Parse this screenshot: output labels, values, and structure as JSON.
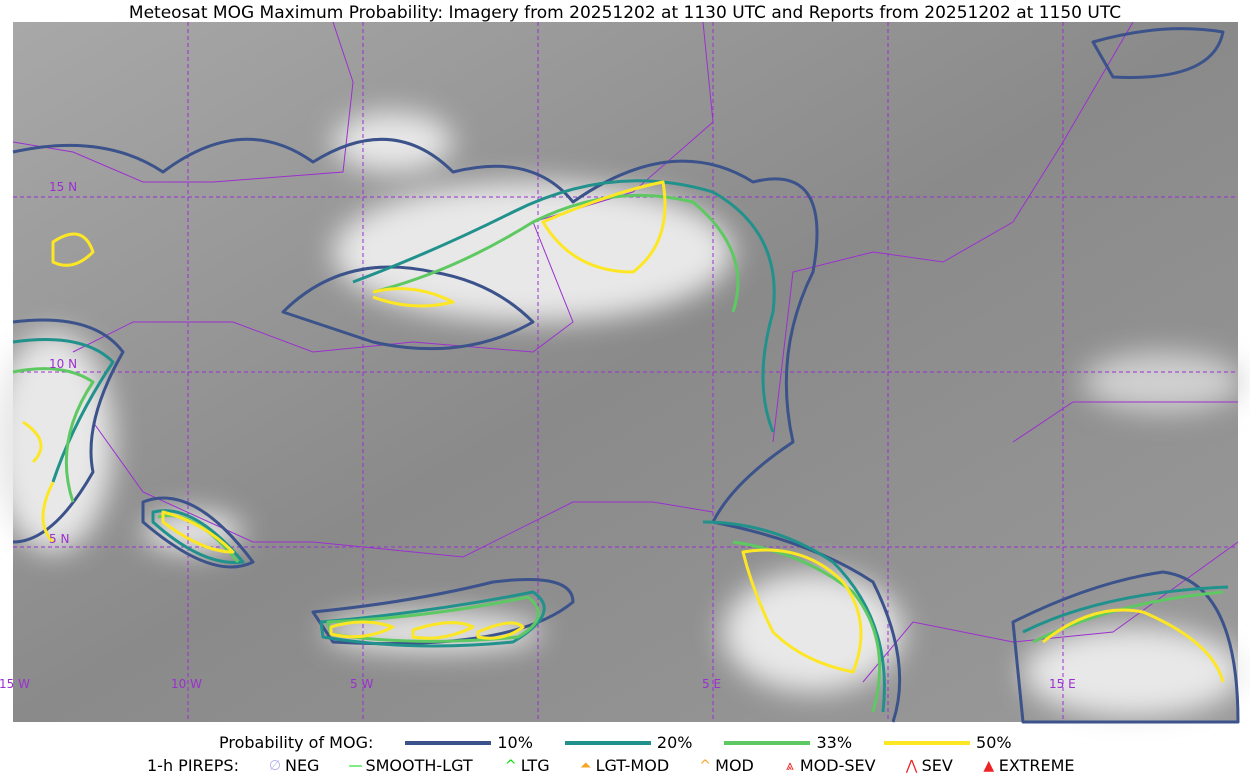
{
  "title": "Meteosat MOG Maximum Probability: Imagery from 20251202 at 1130 UTC and Reports from 20251202 at 1150 UTC",
  "map": {
    "lat_labels": [
      "15 N",
      "10 N",
      "5 N"
    ],
    "lon_labels": [
      "15 W",
      "10 W",
      "5 W",
      "5 E",
      "15 E"
    ],
    "border_color": "#9b30d0"
  },
  "legend": {
    "prob_label": "Probability of MOG:",
    "levels": [
      {
        "label": "10%",
        "color": "#3b528b"
      },
      {
        "label": "20%",
        "color": "#21918c"
      },
      {
        "label": "33%",
        "color": "#5ec962"
      },
      {
        "label": "50%",
        "color": "#fde725"
      }
    ],
    "pirep_label": "1-h PIREPS:",
    "pireps": [
      {
        "label": "NEG",
        "icon": "neg-circle-icon",
        "color": "#b0b0f0"
      },
      {
        "label": "SMOOTH-LGT",
        "icon": "line-icon",
        "color": "#00dd00"
      },
      {
        "label": "LTG",
        "icon": "caret-icon",
        "color": "#00dd00"
      },
      {
        "label": "LGT-MOD",
        "icon": "caret-bar-icon",
        "color": "#f5a623"
      },
      {
        "label": "MOD",
        "icon": "caret-icon",
        "color": "#f5a623"
      },
      {
        "label": "MOD-SEV",
        "icon": "double-caret-bar-icon",
        "color": "#ee2222"
      },
      {
        "label": "SEV",
        "icon": "double-caret-icon",
        "color": "#ee2222"
      },
      {
        "label": "EXTREME",
        "icon": "filled-triangle-icon",
        "color": "#ee2222"
      }
    ]
  }
}
